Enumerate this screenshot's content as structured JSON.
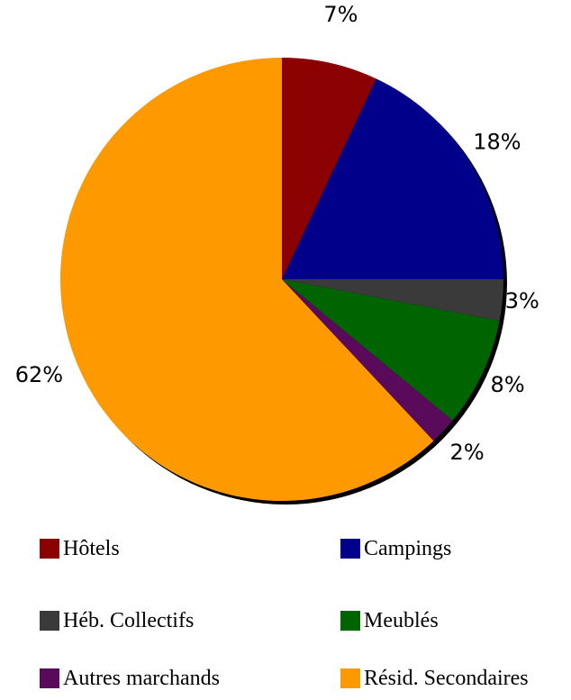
{
  "chart_data": {
    "type": "pie",
    "title": "",
    "categories": [
      "Hôtels",
      "Campings",
      "Héb. Collectifs",
      "Meublés",
      "Autres marchands",
      "Résid. Secondaires"
    ],
    "values": [
      7,
      18,
      3,
      8,
      2,
      62
    ],
    "value_labels": [
      "7%",
      "18%",
      "3%",
      "8%",
      "2%",
      "62%"
    ],
    "colors": [
      "#8b0000",
      "#00008b",
      "#3a3a3a",
      "#006400",
      "#5a0a5a",
      "#ff9900"
    ],
    "start": "12 o'clock",
    "direction": "clockwise",
    "legend_position": "bottom"
  },
  "legend": {
    "items": [
      {
        "label": "Hôtels",
        "color": "#8b0000"
      },
      {
        "label": "Campings",
        "color": "#00008b"
      },
      {
        "label": "Héb. Collectifs",
        "color": "#3a3a3a"
      },
      {
        "label": "Meublés",
        "color": "#006400"
      },
      {
        "label": "Autres marchands",
        "color": "#5a0a5a"
      },
      {
        "label": "Résid. Secondaires",
        "color": "#ff9900"
      }
    ]
  }
}
